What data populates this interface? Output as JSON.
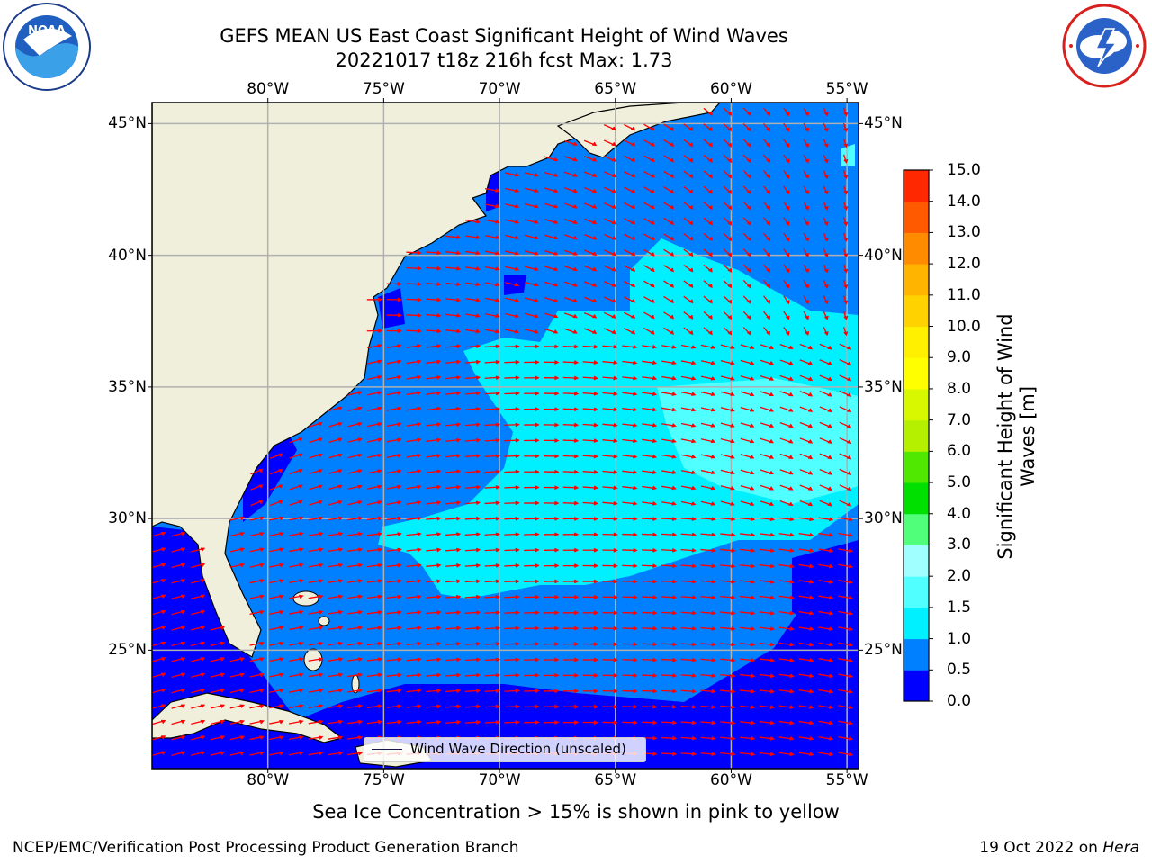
{
  "header": {
    "title_line1": "GEFS MEAN US East Coast Significant Height of Wind Waves",
    "title_line2": "20221017 t18z 216h fcst   Max: 1.73",
    "noaa_logo_text": "NOAA",
    "noaa_logo_ring": "NATIONAL OCEANIC AND ATMOSPHERIC ADMINISTRATION · U.S. DEPARTMENT OF COMMERCE",
    "nws_logo_ring": "NATIONAL WEATHER SERVICE"
  },
  "map": {
    "projection": "plate carree",
    "lon_range": [
      -85,
      -54.5
    ],
    "lat_range": [
      20.5,
      45.8
    ],
    "lon_ticks": [
      -80,
      -75,
      -70,
      -65,
      -60,
      -55
    ],
    "lon_tick_labels": [
      "80°W",
      "75°W",
      "70°W",
      "65°W",
      "60°W",
      "55°W"
    ],
    "lat_ticks": [
      45,
      40,
      35,
      30,
      25
    ],
    "lat_tick_labels": [
      "45°N",
      "40°N",
      "35°N",
      "30°N",
      "25°N"
    ],
    "grid": true,
    "colors": {
      "land": "#efefdc",
      "grid": "#b0b0b0",
      "arrows": "#ff0000",
      "coast": "#000000"
    }
  },
  "legend": {
    "label": "Wind Wave Direction (unscaled)"
  },
  "colorbar": {
    "label_line1": "Significant Height of Wind",
    "label_line2": "Waves [m]",
    "levels": [
      0.0,
      0.5,
      1.0,
      1.5,
      2.0,
      3.0,
      4.0,
      5.0,
      6.0,
      7.0,
      8.0,
      9.0,
      10.0,
      11.0,
      12.0,
      13.0,
      14.0,
      15.0
    ],
    "tick_labels": [
      "0.0",
      "0.5",
      "1.0",
      "1.5",
      "2.0",
      "3.0",
      "4.0",
      "5.0",
      "6.0",
      "7.0",
      "8.0",
      "9.0",
      "10.0",
      "11.0",
      "12.0",
      "13.0",
      "14.0",
      "15.0"
    ],
    "colors": [
      "#0000ff",
      "#0080ff",
      "#00f0ff",
      "#50ffff",
      "#a0ffff",
      "#50ff7a",
      "#00e000",
      "#50e800",
      "#b4f000",
      "#d8f800",
      "#ffff00",
      "#fff000",
      "#ffd200",
      "#ffb400",
      "#ff8c00",
      "#ff5a00",
      "#ff2800"
    ]
  },
  "captions": {
    "sea_ice": "Sea Ice Concentration > 15% is shown in pink to yellow"
  },
  "footer": {
    "left": "NCEP/EMC/Verification Post Processing Product Generation Branch",
    "right_prefix": "19 Oct 2022 on ",
    "right_host": "Hera"
  }
}
